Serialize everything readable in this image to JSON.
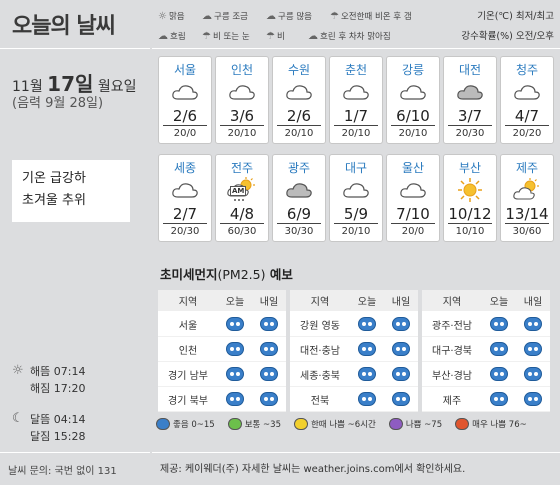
{
  "header": {
    "title": "오늘의 날씨"
  },
  "date": {
    "month": "11월",
    "day": "17일",
    "weekday": "월요일",
    "lunar": "(음력 9월 28일)"
  },
  "note": {
    "line1": "기온 급강하",
    "line2": "초겨울 추위"
  },
  "sun": {
    "rise_label": "해뜸",
    "rise": "07:14",
    "set_label": "해짐",
    "set": "17:20"
  },
  "moon": {
    "rise_label": "달뜸",
    "rise": "04:14",
    "set_label": "달짐",
    "set": "15:28"
  },
  "inquiry": "날씨 문의: 국번 없이 131",
  "legend": [
    {
      "icon": "sunny-icon",
      "label": "맑음"
    },
    {
      "icon": "partly-cloudy-icon",
      "label": "구름 조금"
    },
    {
      "icon": "mostly-cloudy-icon",
      "label": "구름 많음"
    },
    {
      "icon": "rain-after-noon-icon",
      "label": "오전한때 비온 후 갬"
    },
    {
      "icon": "overcast-icon",
      "label": "흐림"
    },
    {
      "icon": "rain-or-snow-icon",
      "label": "비 또는 눈"
    },
    {
      "icon": "rain-icon",
      "label": "비"
    },
    {
      "icon": "clearing-icon",
      "label": "흐린 후 차차 맑아짐"
    }
  ],
  "units": {
    "temp": "기온(℃) 최저/최고",
    "rain": "강수확률(%) 오전/오후"
  },
  "cities": [
    {
      "name": "서울",
      "icon": "cloud",
      "temp": "2/6",
      "rain": "20/0"
    },
    {
      "name": "인천",
      "icon": "cloud",
      "temp": "3/6",
      "rain": "20/10"
    },
    {
      "name": "수원",
      "icon": "cloud",
      "temp": "2/6",
      "rain": "20/10"
    },
    {
      "name": "춘천",
      "icon": "cloud",
      "temp": "1/7",
      "rain": "20/10"
    },
    {
      "name": "강릉",
      "icon": "cloud",
      "temp": "6/10",
      "rain": "20/10"
    },
    {
      "name": "대전",
      "icon": "overcast",
      "temp": "3/7",
      "rain": "20/30"
    },
    {
      "name": "청주",
      "icon": "cloud",
      "temp": "4/7",
      "rain": "20/20"
    },
    {
      "name": "세종",
      "icon": "cloud",
      "temp": "2/7",
      "rain": "20/30"
    },
    {
      "name": "전주",
      "icon": "am-rain",
      "temp": "4/8",
      "rain": "60/30",
      "am": "AM"
    },
    {
      "name": "광주",
      "icon": "overcast",
      "temp": "6/9",
      "rain": "30/30"
    },
    {
      "name": "대구",
      "icon": "cloud",
      "temp": "5/9",
      "rain": "20/10"
    },
    {
      "name": "울산",
      "icon": "cloud",
      "temp": "7/10",
      "rain": "20/0"
    },
    {
      "name": "부산",
      "icon": "sun",
      "temp": "10/12",
      "rain": "10/10"
    },
    {
      "name": "제주",
      "icon": "partly",
      "temp": "13/14",
      "rain": "30/60"
    }
  ],
  "dust": {
    "title": "초미세먼지",
    "title_sub": "(PM2.5)",
    "title_suffix": " 예보",
    "head": {
      "region": "지역",
      "today": "오늘",
      "tomorrow": "내일"
    },
    "tables": [
      [
        "서울",
        "인천",
        "경기 남부",
        "경기 북부"
      ],
      [
        "강원 영동",
        "대전·충남",
        "세종·충북",
        "전북"
      ],
      [
        "광주·전남",
        "대구·경북",
        "부산·경남",
        "제주"
      ]
    ],
    "legend": [
      {
        "label": "좋음 0~15",
        "color": "#3a7fc9"
      },
      {
        "label": "보통 ~35",
        "color": "#6cbf4b"
      },
      {
        "label": "한때 나쁨 ~6시간",
        "color": "#f2d02e"
      },
      {
        "label": "나쁨 ~75",
        "color": "#8e5cc1"
      },
      {
        "label": "매우 나쁨 76~",
        "color": "#e0552e"
      }
    ]
  },
  "source": "제공: 케이웨더(주) 자세한 날씨는 weather.joins.com에서 확인하세요."
}
